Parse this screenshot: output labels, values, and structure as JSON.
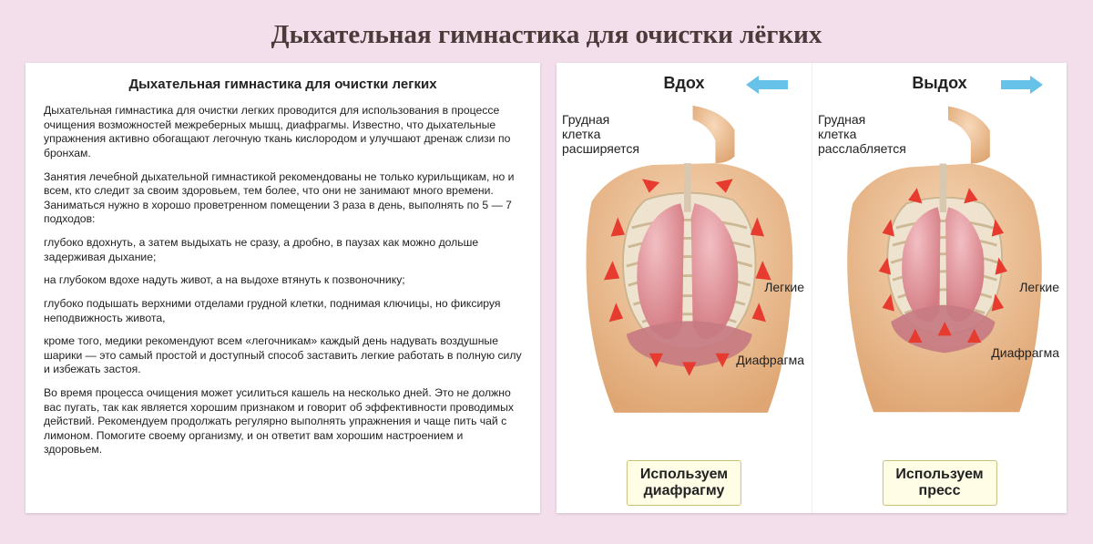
{
  "page_title": "Дыхательная гимнастика для очистки лёгких",
  "text_card": {
    "heading": "Дыхательная гимнастика для очистки легких",
    "paragraphs": [
      "Дыхательная гимнастика для очистки легких проводится для использования в процессе очищения возможностей межреберных мышц, диафрагмы. Известно, что дыхательные упражнения активно обогащают легочную ткань кислородом и улучшают дренаж слизи по бронхам.",
      "Занятия лечебной дыхательной гимнастикой рекомендованы не только курильщикам, но и всем, кто следит за своим здоровьем, тем более, что они не занимают много времени. Заниматься нужно в хорошо проветренном помещении 3 раза в день, выполнять по 5 — 7 подходов:",
      "глубоко вдохнуть, а затем выдыхать не сразу, а дробно, в паузах как можно дольше задерживая дыхание;",
      "на глубоком   вдохе надуть живот, а на выдохе втянуть к позвоночнику;",
      "глубоко подышать верхними отделами грудной клетки, поднимая ключицы, но фиксируя неподвижность живота,",
      "кроме того, медики рекомендуют всем «легочникам» каждый день надувать воздушные шарики — это самый простой и доступный способ заставить легкие работать в полную силу и избежать застоя.",
      "Во время процесса очищения может усилиться кашель на несколько дней. Это не должно вас пугать, так как является хорошим признаком и говорит об эффективности проводимых действий. Рекомендуем продолжать регулярно выполнять упражнения и чаще пить чай с лимоном. Помогите своему организму, и он ответит вам хорошим настроением и здоровьем."
    ]
  },
  "diagram": {
    "inhale": {
      "title": "Вдох",
      "chest_label": "Грудная\nклетка\nрасширяется",
      "lungs_label": "Легкие",
      "diaphragm_label": "Диафрагма",
      "callout": "Используем\nдиафрагму",
      "air_arrow_direction": "in",
      "air_arrow_color": "#66c2e8"
    },
    "exhale": {
      "title": "Выдох",
      "chest_label": "Грудная\nклетка\nрасслабляется",
      "lungs_label": "Легкие",
      "diaphragm_label": "Диафрагма",
      "callout": "Используем\nпресс",
      "air_arrow_direction": "out",
      "air_arrow_color": "#66c2e8"
    },
    "colors": {
      "skin": "#f2c9a6",
      "skin_shadow": "#dfa673",
      "rib": "#e9dcc5",
      "rib_edge": "#c9b48f",
      "lung": "#e9a2a7",
      "lung_shadow": "#d47b83",
      "diaphragm": "#c77b82",
      "red_arrow": "#e63b2e",
      "callout_bg": "#fffde6",
      "callout_border": "#c9c07a",
      "page_bg": "#f3dfeb",
      "card_bg": "#ffffff",
      "text": "#222222"
    },
    "fontsizes": {
      "page_title": 29,
      "card_heading": 15,
      "body": 12.2,
      "panel_title": 18,
      "side_label": 14,
      "callout": 16
    }
  }
}
